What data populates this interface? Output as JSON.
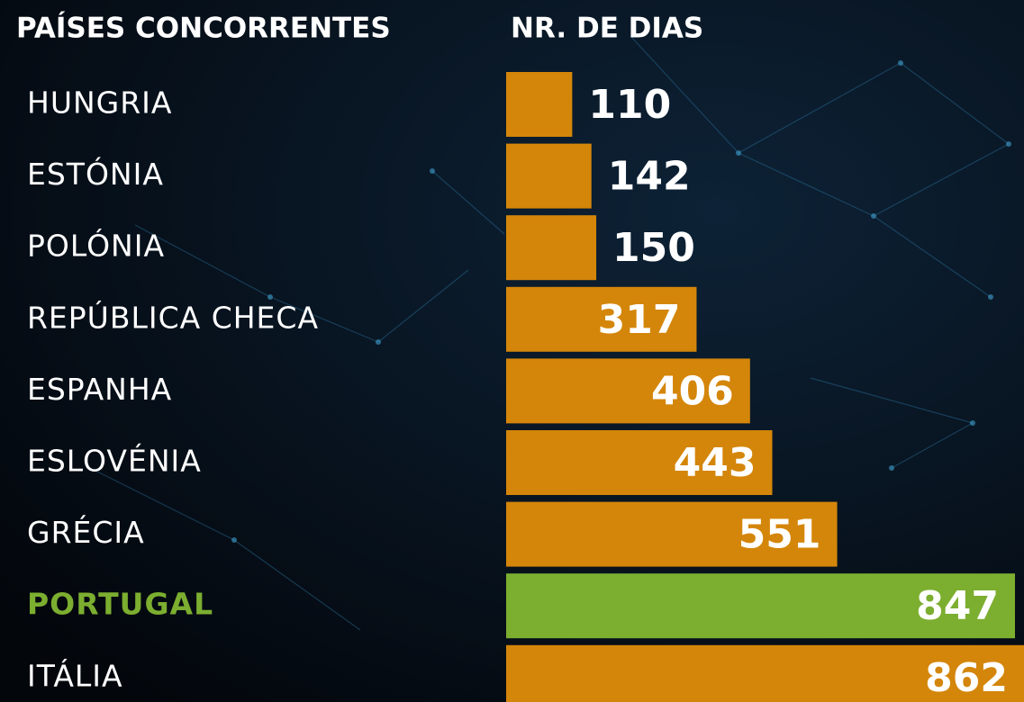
{
  "chart_data": {
    "type": "bar",
    "orientation": "horizontal",
    "category_header": "PAÍSES CONCORRENTES",
    "value_header": "NR. DE DIAS",
    "categories": [
      "HUNGRIA",
      "ESTÓNIA",
      "POLÓNIA",
      "REPÚBLICA CHECA",
      "ESPANHA",
      "ESLOVÉNIA",
      "GRÉCIA",
      "PORTUGAL",
      "ITÁLIA"
    ],
    "values": [
      110,
      142,
      150,
      317,
      406,
      443,
      551,
      847,
      862
    ],
    "color": "#d4860a",
    "highlight": 7,
    "highlight_color": "#7cae30"
  }
}
